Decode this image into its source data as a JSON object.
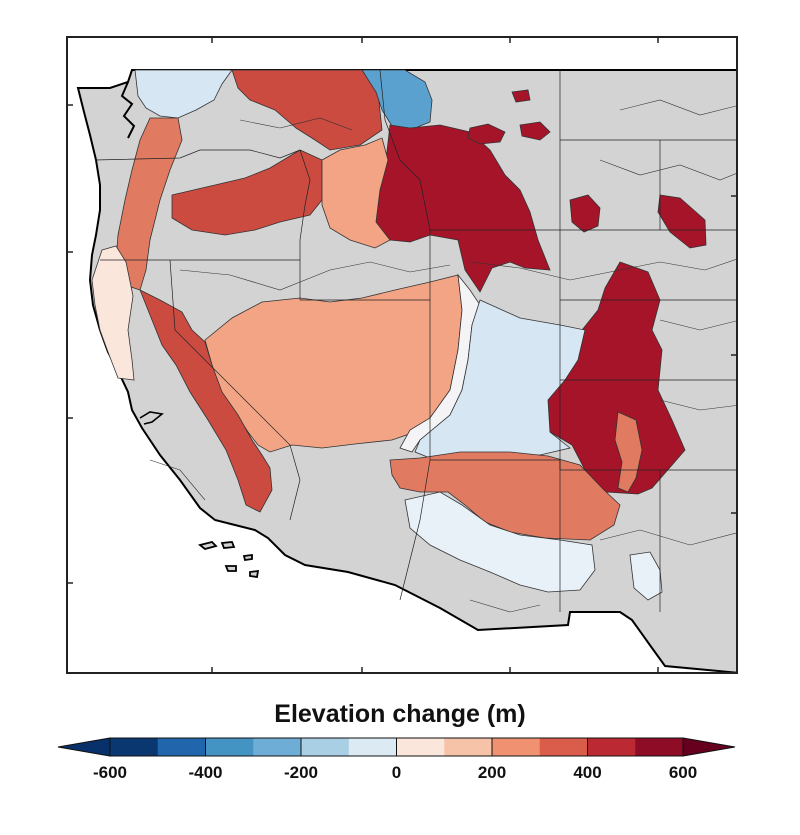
{
  "map": {
    "region": "Western United States",
    "land_color": "#d3d3d3",
    "ocean_color": "#ffffff",
    "regions": [
      {
        "name": "north-cascades-east",
        "value": -100,
        "color": "#d6e6f3"
      },
      {
        "name": "columbia-plateau-north",
        "value": 400,
        "color": "#cb4b41"
      },
      {
        "name": "northern-rockies-west",
        "value": -300,
        "color": "#5aa1cf"
      },
      {
        "name": "northern-rockies-east",
        "value": 600,
        "color": "#a51429"
      },
      {
        "name": "montana-outliers",
        "value": 600,
        "color": "#a51429"
      },
      {
        "name": "cascades",
        "value": 300,
        "color": "#e07b62"
      },
      {
        "name": "blue-mountains-snake",
        "value": 400,
        "color": "#cb4b41"
      },
      {
        "name": "idaho-batholith",
        "value": 200,
        "color": "#f2a485"
      },
      {
        "name": "black-hills",
        "value": 600,
        "color": "#a51429"
      },
      {
        "name": "coast-range",
        "value": 50,
        "color": "#fbe6dc"
      },
      {
        "name": "great-basin",
        "value": 200,
        "color": "#f2a485"
      },
      {
        "name": "sierra-nevada",
        "value": 400,
        "color": "#cb4b41"
      },
      {
        "name": "wasatch-uinta",
        "value": 0,
        "color": "#f4f4f6"
      },
      {
        "name": "colorado-plateau",
        "value": -100,
        "color": "#d6e6f3"
      },
      {
        "name": "southern-rockies",
        "value": 600,
        "color": "#8e0c26"
      },
      {
        "name": "sangre-de-cristo",
        "value": 300,
        "color": "#e07b62"
      },
      {
        "name": "mogollon-rim",
        "value": 300,
        "color": "#e07b62"
      },
      {
        "name": "basin-range-south",
        "value": -50,
        "color": "#e9f1f8"
      }
    ]
  },
  "colorbar": {
    "title": "Elevation change (m)",
    "vmin": -600,
    "vmax": 600,
    "extend": "both",
    "ticks": [
      {
        "value": -600,
        "label": "-600"
      },
      {
        "value": -400,
        "label": "-400"
      },
      {
        "value": -200,
        "label": "-200"
      },
      {
        "value": 0,
        "label": "0"
      },
      {
        "value": 200,
        "label": "200"
      },
      {
        "value": 400,
        "label": "400"
      },
      {
        "value": 600,
        "label": "600"
      }
    ],
    "bins": [
      {
        "from": -600,
        "to": -500,
        "color": "#0b3771"
      },
      {
        "from": -500,
        "to": -400,
        "color": "#2166ac"
      },
      {
        "from": -400,
        "to": -300,
        "color": "#4393c3"
      },
      {
        "from": -300,
        "to": -200,
        "color": "#6eaed6"
      },
      {
        "from": -200,
        "to": -100,
        "color": "#a9cfe5"
      },
      {
        "from": -100,
        "to": 0,
        "color": "#dceaf4"
      },
      {
        "from": 0,
        "to": 100,
        "color": "#fbe6dc"
      },
      {
        "from": 100,
        "to": 200,
        "color": "#f6c2a8"
      },
      {
        "from": 200,
        "to": 300,
        "color": "#f09272"
      },
      {
        "from": 300,
        "to": 400,
        "color": "#da5d4b"
      },
      {
        "from": 400,
        "to": 500,
        "color": "#bb2a33"
      },
      {
        "from": 500,
        "to": 600,
        "color": "#8e0c26"
      }
    ],
    "extend_low_color": "#08306b",
    "extend_high_color": "#67001f"
  }
}
